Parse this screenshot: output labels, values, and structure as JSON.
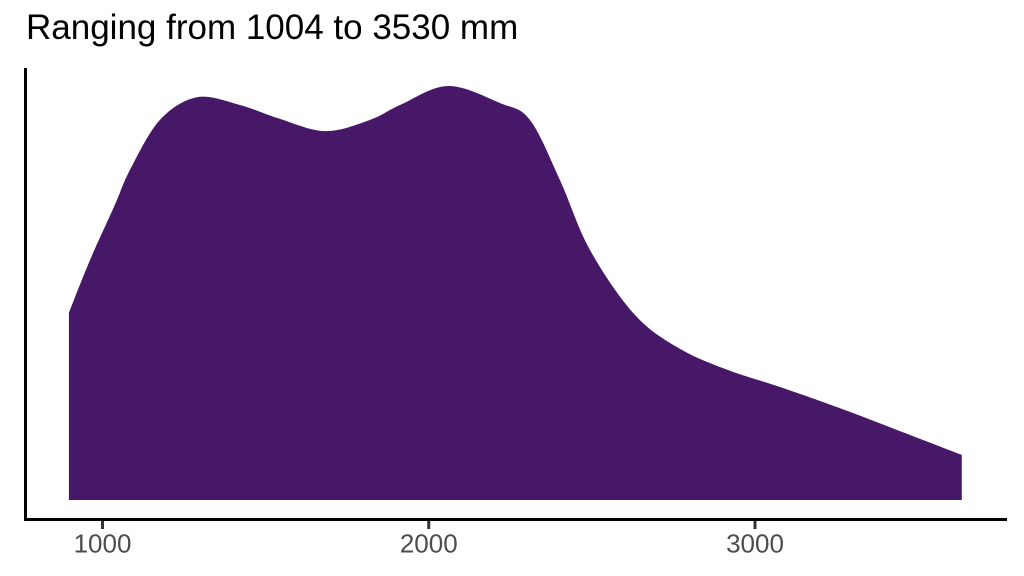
{
  "chart_data": {
    "type": "area",
    "title": "Ranging from 1004 to 3530 mm",
    "xlabel": "",
    "ylabel": "",
    "x_ticks": [
      1000,
      2000,
      3000
    ],
    "x_range_mm": [
      897,
      3634
    ],
    "x": [
      897,
      962,
      1038,
      1084,
      1176,
      1290,
      1421,
      1535,
      1682,
      1820,
      1912,
      2059,
      2218,
      2310,
      2402,
      2494,
      2632,
      2770,
      2920,
      3080,
      3290,
      3634
    ],
    "density": [
      0.452,
      0.58,
      0.713,
      0.797,
      0.918,
      0.973,
      0.954,
      0.923,
      0.891,
      0.918,
      0.954,
      1.0,
      0.959,
      0.918,
      0.773,
      0.604,
      0.447,
      0.365,
      0.313,
      0.272,
      0.213,
      0.109
    ],
    "legend": null,
    "grid": false,
    "fill_color": "#471768",
    "axis_line_color": "#000000",
    "tick_mark_color": "#333333",
    "tick_label_color": "#4d4d4d",
    "background_color": "#ffffff"
  }
}
